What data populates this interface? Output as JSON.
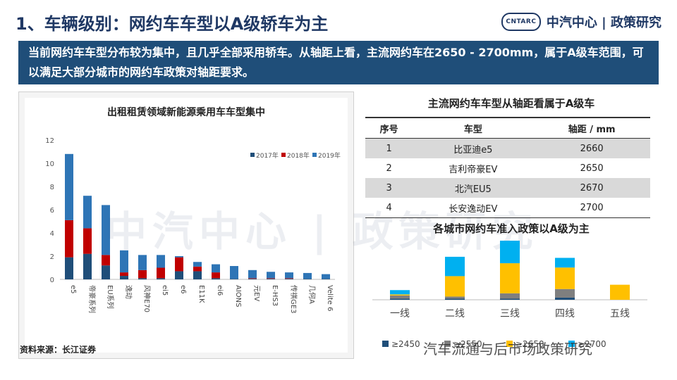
{
  "slide": {
    "title": "1、车辆级别：网约车车型以A级轿车为主",
    "logo_mark": "CNTARC",
    "logo_text": "中汽中心 | 政策研究",
    "banner_text": "当前网约车车型分布较为集中，且几乎全部采用轿车。从轴距上看，主流网约车在2650 - 2700mm，属于A级车范围，可以满足大部分城市的网约车政策对轴距要求。",
    "source": "资料来源：长江证券",
    "watermark": "中汽中心 | 政策研究",
    "wechat_watermark": "汽车流通与后市场政策研究"
  },
  "left_chart_title": "出租租赁领域新能源乘用车车型集中",
  "right_table": {
    "title": "主流网约车车型从轴距看属于A级车",
    "headers": [
      "序号",
      "车型",
      "轴距 / mm"
    ],
    "rows": [
      [
        "1",
        "比亚迪e5",
        "2660"
      ],
      [
        "2",
        "吉利帝豪EV",
        "2650"
      ],
      [
        "3",
        "北汽EU5",
        "2670"
      ],
      [
        "4",
        "长安逸动EV",
        "2700"
      ]
    ]
  },
  "city_chart_title": "各城市网约车准入政策以A级为主",
  "chart_data": [
    {
      "type": "bar",
      "stacked": true,
      "title": "出租租赁领域新能源乘用车车型集中",
      "categories": [
        "e5",
        "帝豪系列",
        "EU系列",
        "逸动",
        "风神E70",
        "ei5",
        "e6",
        "E11K",
        "ei6",
        "AIONS",
        "元EV",
        "E-HS3",
        "传祺GE3",
        "几何A",
        "Velite 6"
      ],
      "series": [
        {
          "name": "2017年",
          "color": "#1f4e79",
          "values": [
            1.9,
            2.2,
            1.2,
            0.3,
            0.1,
            0.1,
            0.7,
            0.7,
            0.1,
            0.05,
            0.05,
            0.05,
            0.05,
            0.05,
            0.05
          ]
        },
        {
          "name": "2018年",
          "color": "#c00000",
          "values": [
            3.2,
            2.2,
            0.9,
            0.3,
            0.7,
            0.9,
            1.2,
            0.4,
            0.5,
            0.0,
            0.05,
            0.05,
            0.05,
            0.0,
            0.0
          ]
        },
        {
          "name": "2019年",
          "color": "#2e75b6",
          "values": [
            5.7,
            2.8,
            4.3,
            1.9,
            1.3,
            1.1,
            0.1,
            0.4,
            0.7,
            1.1,
            0.7,
            0.55,
            0.5,
            0.5,
            0.4
          ]
        }
      ],
      "ylim": [
        0,
        12
      ],
      "yticks": [
        0,
        2,
        4,
        6,
        8,
        10,
        12
      ],
      "legend_position": "top-right",
      "grid": false
    },
    {
      "type": "bar",
      "stacked": true,
      "title": "各城市网约车准入政策以A级为主",
      "categories": [
        "一线",
        "二线",
        "三线",
        "四线",
        "五线"
      ],
      "series": [
        {
          "name": "≥2450",
          "color": "#1f4e79",
          "values": [
            0.1,
            0.1,
            0.1,
            0.2,
            0.0
          ]
        },
        {
          "name": "≥2550",
          "color": "#7f7f7f",
          "values": [
            0.3,
            0.2,
            0.5,
            0.8,
            0.0
          ]
        },
        {
          "name": "≥2650",
          "color": "#ffc000",
          "values": [
            0.1,
            1.9,
            2.8,
            2.0,
            1.4
          ]
        },
        {
          "name": "≥2700",
          "color": "#00b0f0",
          "values": [
            0.4,
            1.8,
            2.1,
            0.9,
            0.0
          ]
        }
      ],
      "legend_position": "bottom",
      "grid": false
    }
  ]
}
